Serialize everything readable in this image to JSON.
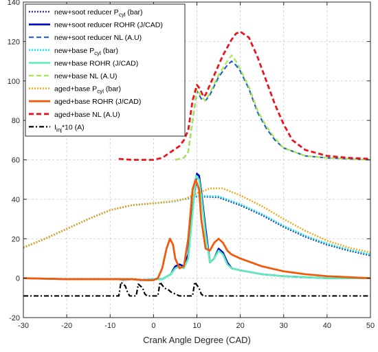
{
  "chart_data": {
    "type": "line",
    "xlabel": "Crank Angle Degree (CAD)",
    "ylabel": "",
    "xlim": [
      -30,
      50
    ],
    "ylim": [
      -20,
      140
    ],
    "xticks": [
      "-30",
      "-20",
      "-10",
      "0",
      "10",
      "20",
      "30",
      "40",
      "50"
    ],
    "yticks": [
      "-20",
      "0",
      "20",
      "40",
      "60",
      "80",
      "100",
      "120",
      "140"
    ],
    "grid": true,
    "legend_position": "top-left",
    "series": [
      {
        "name": "new+soot reducer P_cyl (bar)",
        "color": "#1f1f8f",
        "style": "dotted",
        "width": 2.6,
        "points": [
          [
            -30,
            15.5
          ],
          [
            -25,
            20
          ],
          [
            -20,
            25
          ],
          [
            -15,
            30
          ],
          [
            -10,
            34.5
          ],
          [
            -5,
            37
          ],
          [
            0,
            38
          ],
          [
            5,
            39
          ],
          [
            10,
            41.5
          ],
          [
            15,
            41
          ],
          [
            20,
            37
          ],
          [
            25,
            32
          ],
          [
            30,
            26
          ],
          [
            35,
            21
          ],
          [
            40,
            17
          ],
          [
            45,
            14
          ],
          [
            50,
            11.5
          ]
        ]
      },
      {
        "name": "new+soot reducer ROHR (J/CAD)",
        "color": "#0000cd",
        "style": "solid",
        "width": 2.6,
        "points": [
          [
            -30,
            0
          ],
          [
            -20,
            -0.5
          ],
          [
            -10,
            -0.5
          ],
          [
            -8,
            -0.5
          ],
          [
            -7,
            -1
          ],
          [
            -5,
            -0.5
          ],
          [
            -3,
            -1
          ],
          [
            0,
            -0.5
          ],
          [
            2,
            -0.5
          ],
          [
            4,
            2
          ],
          [
            5,
            6
          ],
          [
            6,
            7
          ],
          [
            7,
            6
          ],
          [
            8,
            12
          ],
          [
            9,
            35
          ],
          [
            10,
            53
          ],
          [
            10.5,
            52
          ],
          [
            11,
            44
          ],
          [
            12,
            25
          ],
          [
            13,
            8
          ],
          [
            14,
            10
          ],
          [
            15,
            15
          ],
          [
            16,
            13
          ],
          [
            17,
            8
          ],
          [
            18,
            5
          ],
          [
            20,
            4
          ],
          [
            25,
            2
          ],
          [
            30,
            1
          ],
          [
            35,
            0.5
          ],
          [
            40,
            0
          ],
          [
            45,
            0
          ],
          [
            50,
            0
          ]
        ]
      },
      {
        "name": "new+soot reducer NL (A.U)",
        "color": "#1e5fd6",
        "style": "dashed",
        "width": 2.2,
        "points": [
          [
            5,
            60
          ],
          [
            7,
            61
          ],
          [
            8,
            64
          ],
          [
            9,
            80
          ],
          [
            10,
            95
          ],
          [
            11,
            91
          ],
          [
            12,
            90
          ],
          [
            13,
            93
          ],
          [
            15,
            102
          ],
          [
            17,
            108
          ],
          [
            18,
            110
          ],
          [
            19,
            108
          ],
          [
            20,
            105
          ],
          [
            22,
            96
          ],
          [
            24,
            84
          ],
          [
            26,
            76
          ],
          [
            28,
            70
          ],
          [
            30,
            66
          ],
          [
            35,
            62
          ],
          [
            40,
            61
          ],
          [
            45,
            60.5
          ],
          [
            50,
            60
          ]
        ]
      },
      {
        "name": "new+base P_cyl (bar)",
        "color": "#00e5ff",
        "style": "dotted",
        "width": 2.6,
        "points": [
          [
            -30,
            15.5
          ],
          [
            -25,
            20
          ],
          [
            -20,
            25
          ],
          [
            -15,
            30
          ],
          [
            -10,
            34.5
          ],
          [
            -5,
            37
          ],
          [
            0,
            38
          ],
          [
            5,
            39
          ],
          [
            10,
            41.8
          ],
          [
            15,
            41.5
          ],
          [
            20,
            37.5
          ],
          [
            25,
            32.5
          ],
          [
            30,
            26.5
          ],
          [
            35,
            21.5
          ],
          [
            40,
            17.5
          ],
          [
            45,
            14.5
          ],
          [
            50,
            12
          ]
        ]
      },
      {
        "name": "new+base ROHR (J/CAD)",
        "color": "#5cf0b8",
        "style": "solid",
        "width": 2.6,
        "points": [
          [
            -30,
            0
          ],
          [
            -20,
            -0.5
          ],
          [
            -10,
            -0.5
          ],
          [
            -8,
            -0.5
          ],
          [
            -7,
            -1
          ],
          [
            -5,
            -0.5
          ],
          [
            -3,
            -1
          ],
          [
            0,
            -0.5
          ],
          [
            2,
            -0.5
          ],
          [
            4,
            2
          ],
          [
            5,
            5
          ],
          [
            6,
            6
          ],
          [
            7,
            5
          ],
          [
            8,
            10
          ],
          [
            9,
            33
          ],
          [
            9.8,
            52
          ],
          [
            10.5,
            50
          ],
          [
            11,
            42
          ],
          [
            12,
            22
          ],
          [
            13,
            8
          ],
          [
            14,
            10
          ],
          [
            15,
            14
          ],
          [
            16,
            12
          ],
          [
            17,
            7
          ],
          [
            18,
            5
          ],
          [
            20,
            4
          ],
          [
            25,
            2
          ],
          [
            30,
            1
          ],
          [
            35,
            0.5
          ],
          [
            40,
            0
          ],
          [
            45,
            0
          ],
          [
            50,
            0
          ]
        ]
      },
      {
        "name": "new+base NL (A.U)",
        "color": "#a9e84a",
        "style": "dashed",
        "width": 2.2,
        "points": [
          [
            5,
            60
          ],
          [
            7,
            61
          ],
          [
            8,
            64
          ],
          [
            9,
            80
          ],
          [
            10,
            96
          ],
          [
            11,
            92
          ],
          [
            12,
            90
          ],
          [
            13,
            94
          ],
          [
            15,
            103
          ],
          [
            17,
            110
          ],
          [
            18,
            113
          ],
          [
            19,
            110
          ],
          [
            20,
            106
          ],
          [
            22,
            97
          ],
          [
            24,
            85
          ],
          [
            26,
            77
          ],
          [
            28,
            71
          ],
          [
            30,
            66
          ],
          [
            35,
            62
          ],
          [
            40,
            61
          ],
          [
            45,
            60.5
          ],
          [
            50,
            60
          ]
        ]
      },
      {
        "name": "aged+base P_cyl (bar)",
        "color": "#f0a30a",
        "style": "dotted",
        "width": 2.6,
        "points": [
          [
            -30,
            15.5
          ],
          [
            -25,
            20
          ],
          [
            -20,
            25
          ],
          [
            -15,
            30
          ],
          [
            -10,
            34.5
          ],
          [
            -5,
            37
          ],
          [
            0,
            38
          ],
          [
            4,
            39
          ],
          [
            7,
            40
          ],
          [
            10,
            43
          ],
          [
            13,
            45.5
          ],
          [
            16,
            45.5
          ],
          [
            20,
            42
          ],
          [
            25,
            36.5
          ],
          [
            30,
            30
          ],
          [
            35,
            24
          ],
          [
            40,
            19
          ],
          [
            45,
            15.5
          ],
          [
            50,
            13
          ]
        ]
      },
      {
        "name": "aged+base ROHR (J/CAD)",
        "color": "#f05a0a",
        "style": "solid",
        "width": 2.8,
        "points": [
          [
            -30,
            0
          ],
          [
            -20,
            -0.5
          ],
          [
            -10,
            -0.5
          ],
          [
            -5,
            -0.5
          ],
          [
            -2,
            -1
          ],
          [
            0,
            -1
          ],
          [
            1,
            0
          ],
          [
            2,
            5
          ],
          [
            3,
            15
          ],
          [
            3.8,
            20
          ],
          [
            4.5,
            17
          ],
          [
            5,
            10
          ],
          [
            6,
            5
          ],
          [
            7,
            6
          ],
          [
            8,
            20
          ],
          [
            9,
            45
          ],
          [
            9.7,
            50
          ],
          [
            10.5,
            45
          ],
          [
            11,
            30
          ],
          [
            12,
            15
          ],
          [
            13,
            14
          ],
          [
            14,
            18
          ],
          [
            15,
            20
          ],
          [
            16,
            18
          ],
          [
            17,
            14
          ],
          [
            18,
            12
          ],
          [
            20,
            10
          ],
          [
            25,
            6
          ],
          [
            30,
            3.5
          ],
          [
            35,
            2
          ],
          [
            40,
            1
          ],
          [
            45,
            0.5
          ],
          [
            50,
            0
          ]
        ]
      },
      {
        "name": "aged+base NL (A.U)",
        "color": "#e8141e",
        "style": "dashed",
        "width": 2.8,
        "points": [
          [
            -8,
            60.5
          ],
          [
            -5,
            60
          ],
          [
            -2,
            60
          ],
          [
            0,
            60
          ],
          [
            2,
            61
          ],
          [
            4,
            64
          ],
          [
            6,
            67
          ],
          [
            7,
            70
          ],
          [
            8,
            75
          ],
          [
            9,
            90
          ],
          [
            10,
            98
          ],
          [
            10.7,
            96
          ],
          [
            11.5,
            92
          ],
          [
            12,
            93
          ],
          [
            14,
            103
          ],
          [
            16,
            113
          ],
          [
            18,
            121
          ],
          [
            19,
            124
          ],
          [
            20,
            125
          ],
          [
            22,
            122
          ],
          [
            24,
            112
          ],
          [
            26,
            100
          ],
          [
            28,
            88
          ],
          [
            30,
            78
          ],
          [
            32,
            70
          ],
          [
            35,
            65
          ],
          [
            40,
            62
          ],
          [
            45,
            61
          ],
          [
            50,
            60.5
          ]
        ]
      },
      {
        "name": "I_inj*10 (A)",
        "color": "#000000",
        "style": "dashdot",
        "width": 2.2,
        "points": [
          [
            -30,
            -9
          ],
          [
            -8,
            -9
          ],
          [
            -7.5,
            -2
          ],
          [
            -6.5,
            -4
          ],
          [
            -6,
            -7
          ],
          [
            -5.5,
            -9
          ],
          [
            -4,
            -9
          ],
          [
            -3.5,
            -3
          ],
          [
            -2.5,
            -5
          ],
          [
            -2,
            -8
          ],
          [
            -1.5,
            -9
          ],
          [
            1,
            -9
          ],
          [
            1.5,
            -2
          ],
          [
            2.5,
            -5
          ],
          [
            3.5,
            -6
          ],
          [
            4,
            -7
          ],
          [
            5,
            -8
          ],
          [
            6,
            -9
          ],
          [
            9,
            -9
          ],
          [
            9.5,
            -2
          ],
          [
            10.5,
            -5
          ],
          [
            11,
            -8
          ],
          [
            11.5,
            -9
          ],
          [
            50,
            -9
          ]
        ]
      }
    ],
    "legend": {
      "entries": [
        {
          "main": "new+soot reducer P",
          "sub": "cyl",
          "rest": " (bar)",
          "series": 0
        },
        {
          "main": "new+soot reducer ROHR (J/CAD)",
          "sub": "",
          "rest": "",
          "series": 1
        },
        {
          "main": "new+soot reducer NL (A.U)",
          "sub": "",
          "rest": "",
          "series": 2
        },
        {
          "main": "new+base P",
          "sub": "cyl",
          "rest": " (bar)",
          "series": 3
        },
        {
          "main": "new+base ROHR (J/CAD)",
          "sub": "",
          "rest": "",
          "series": 4
        },
        {
          "main": "new+base NL (A.U)",
          "sub": "",
          "rest": "",
          "series": 5
        },
        {
          "main": "aged+base P",
          "sub": "cyl",
          "rest": " (bar)",
          "series": 6
        },
        {
          "main": "aged+base ROHR (J/CAD)",
          "sub": "",
          "rest": "",
          "series": 7
        },
        {
          "main": "aged+base NL (A.U)",
          "sub": "",
          "rest": "",
          "series": 8
        },
        {
          "main": "I",
          "sub": "inj",
          "rest": "*10 (A)",
          "series": 9
        }
      ]
    }
  }
}
